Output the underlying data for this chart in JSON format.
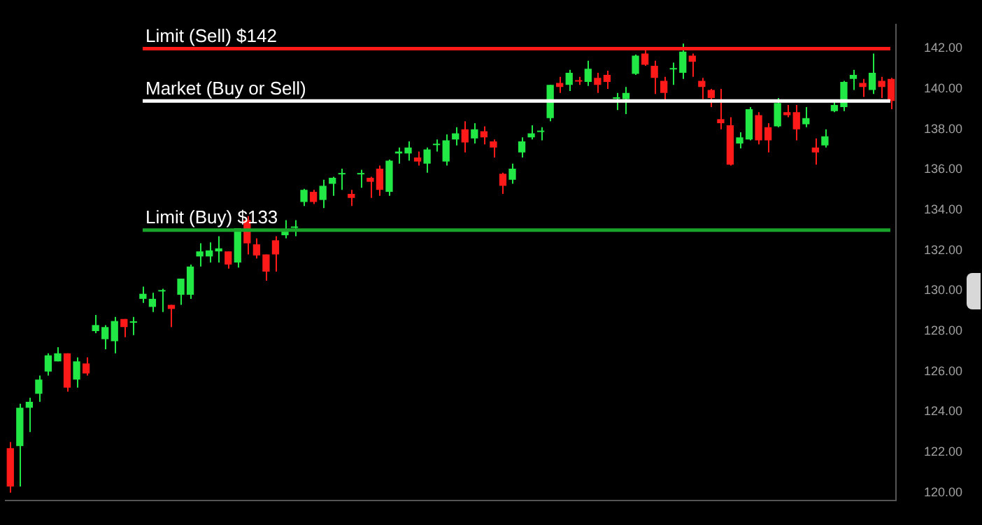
{
  "chart_data": {
    "type": "candlestick",
    "categories": [
      null,
      null,
      null,
      null,
      null,
      null,
      null,
      null,
      null,
      null,
      null,
      null,
      null,
      null,
      null,
      null,
      null,
      null,
      null,
      null,
      null,
      null,
      null,
      null,
      null,
      null,
      null,
      null,
      null,
      null,
      null,
      null,
      null,
      null,
      null,
      null,
      null,
      null,
      null,
      null,
      null,
      null,
      null,
      null,
      null,
      null,
      null,
      null,
      null,
      null,
      null,
      null,
      null,
      null,
      null,
      null,
      null,
      null,
      null,
      null,
      null,
      null,
      null,
      null,
      null,
      null,
      null,
      null,
      null,
      null,
      null,
      null,
      null,
      null,
      null,
      null,
      null,
      null,
      null,
      null,
      null,
      null,
      null,
      null,
      null,
      null,
      null,
      null,
      null,
      null,
      null,
      null,
      null,
      null
    ],
    "ohlc": [
      [
        122.2,
        122.5,
        120.0,
        120.3
      ],
      [
        122.3,
        124.4,
        120.3,
        124.2
      ],
      [
        124.2,
        124.7,
        123.0,
        124.5
      ],
      [
        124.9,
        125.8,
        124.5,
        125.6
      ],
      [
        126.0,
        126.9,
        125.8,
        126.8
      ],
      [
        126.5,
        127.2,
        126.5,
        126.9
      ],
      [
        126.9,
        126.9,
        125.0,
        125.2
      ],
      [
        125.6,
        126.7,
        125.2,
        126.5
      ],
      [
        126.4,
        126.7,
        125.8,
        125.9
      ],
      [
        128.0,
        128.8,
        127.9,
        128.3
      ],
      [
        127.6,
        128.3,
        127.1,
        128.2
      ],
      [
        127.5,
        128.7,
        126.9,
        128.5
      ],
      [
        128.6,
        128.6,
        127.7,
        128.2
      ],
      [
        128.45,
        128.7,
        127.8,
        128.45
      ],
      [
        129.6,
        130.2,
        129.4,
        129.85
      ],
      [
        129.2,
        129.9,
        128.95,
        129.6
      ],
      [
        130.0,
        130.1,
        128.95,
        130.0
      ],
      [
        129.3,
        129.3,
        128.2,
        129.1
      ],
      [
        129.8,
        130.6,
        129.3,
        130.6
      ],
      [
        129.8,
        131.3,
        129.6,
        131.2
      ],
      [
        131.7,
        132.35,
        131.2,
        131.95
      ],
      [
        131.7,
        132.4,
        131.4,
        132.0
      ],
      [
        131.95,
        132.7,
        131.4,
        132.1
      ],
      [
        131.95,
        131.95,
        131.1,
        131.3
      ],
      [
        131.4,
        133.1,
        131.15,
        133.1
      ],
      [
        133.5,
        133.7,
        131.8,
        132.35
      ],
      [
        132.3,
        132.6,
        131.6,
        131.75
      ],
      [
        131.8,
        131.8,
        130.5,
        130.95
      ],
      [
        132.5,
        132.7,
        130.95,
        131.8
      ],
      [
        132.75,
        133.5,
        132.6,
        132.95
      ],
      [
        133.15,
        133.5,
        132.7,
        133.15
      ],
      [
        134.4,
        135.05,
        134.2,
        135.0
      ],
      [
        134.9,
        135.0,
        134.3,
        134.4
      ],
      [
        134.5,
        135.5,
        134.1,
        135.2
      ],
      [
        135.3,
        135.65,
        134.7,
        135.6
      ],
      [
        135.8,
        136.05,
        135.0,
        135.8
      ],
      [
        134.8,
        135.0,
        134.2,
        134.6
      ],
      [
        135.8,
        136.0,
        135.1,
        135.8
      ],
      [
        135.6,
        135.65,
        134.6,
        135.4
      ],
      [
        136.05,
        136.2,
        134.7,
        135.0
      ],
      [
        134.9,
        136.5,
        134.7,
        136.45
      ],
      [
        136.8,
        137.1,
        136.3,
        136.9
      ],
      [
        136.8,
        137.4,
        136.45,
        137.1
      ],
      [
        136.6,
        136.9,
        136.2,
        136.4
      ],
      [
        136.3,
        137.1,
        135.85,
        137.0
      ],
      [
        137.25,
        137.5,
        136.9,
        137.25
      ],
      [
        136.4,
        137.75,
        136.2,
        137.45
      ],
      [
        137.5,
        138.1,
        137.2,
        137.8
      ],
      [
        138.0,
        138.4,
        136.85,
        137.35
      ],
      [
        137.55,
        138.3,
        137.3,
        138.0
      ],
      [
        137.9,
        138.15,
        137.25,
        137.6
      ],
      [
        137.4,
        137.5,
        136.6,
        137.1
      ],
      [
        135.8,
        135.85,
        134.8,
        135.2
      ],
      [
        135.5,
        136.3,
        135.3,
        136.05
      ],
      [
        136.85,
        137.6,
        136.6,
        137.4
      ],
      [
        137.6,
        138.2,
        137.5,
        137.8
      ],
      [
        137.9,
        138.1,
        137.45,
        137.9
      ],
      [
        138.55,
        140.2,
        138.4,
        140.2
      ],
      [
        140.3,
        140.6,
        139.8,
        140.1
      ],
      [
        140.2,
        140.95,
        139.9,
        140.8
      ],
      [
        140.4,
        140.6,
        140.2,
        140.4
      ],
      [
        140.35,
        141.4,
        140.15,
        141.0
      ],
      [
        140.55,
        140.8,
        139.8,
        140.2
      ],
      [
        140.7,
        140.9,
        140.0,
        140.35
      ],
      [
        139.55,
        139.8,
        138.95,
        139.55
      ],
      [
        139.5,
        140.1,
        138.75,
        139.8
      ],
      [
        140.75,
        141.7,
        140.7,
        141.65
      ],
      [
        141.75,
        141.95,
        141.15,
        141.2
      ],
      [
        141.15,
        141.4,
        139.75,
        140.55
      ],
      [
        140.4,
        140.6,
        139.35,
        139.8
      ],
      [
        141.0,
        141.3,
        140.2,
        141.0
      ],
      [
        140.8,
        142.25,
        140.5,
        141.85
      ],
      [
        141.65,
        141.75,
        140.6,
        141.35
      ],
      [
        140.4,
        140.55,
        139.5,
        140.1
      ],
      [
        139.95,
        140.0,
        139.1,
        139.55
      ],
      [
        138.5,
        140.0,
        138.0,
        138.3
      ],
      [
        138.2,
        138.6,
        136.2,
        136.25
      ],
      [
        137.3,
        137.85,
        137.05,
        137.6
      ],
      [
        137.5,
        139.1,
        137.45,
        139.0
      ],
      [
        138.7,
        138.85,
        137.25,
        137.45
      ],
      [
        138.1,
        138.3,
        136.85,
        137.45
      ],
      [
        138.15,
        139.55,
        138.1,
        139.3
      ],
      [
        138.85,
        139.2,
        138.6,
        138.7
      ],
      [
        138.85,
        139.2,
        137.45,
        138.0
      ],
      [
        138.25,
        139.1,
        138.1,
        138.55
      ],
      [
        137.1,
        137.55,
        136.25,
        136.85
      ],
      [
        137.2,
        138.0,
        137.1,
        137.65
      ],
      [
        138.9,
        139.4,
        138.85,
        139.2
      ],
      [
        139.1,
        140.4,
        138.9,
        140.35
      ],
      [
        140.5,
        140.95,
        139.95,
        140.7
      ],
      [
        140.3,
        140.5,
        139.6,
        140.1
      ],
      [
        139.95,
        141.75,
        139.75,
        140.8
      ],
      [
        140.4,
        140.6,
        139.55,
        140.1
      ],
      [
        140.5,
        140.55,
        139.0,
        139.4
      ]
    ],
    "colors": [
      "#ff1a1a",
      "#22e845",
      "#22e845",
      "#22e845",
      "#22e845",
      "#22e845",
      "#ff1a1a",
      "#22e845",
      "#ff1a1a",
      "#22e845",
      "#22e845",
      "#22e845",
      "#ff1a1a",
      "#22e845",
      "#22e845",
      "#22e845",
      "#22e845",
      "#ff1a1a",
      "#22e845",
      "#22e845",
      "#22e845",
      "#22e845",
      "#22e845",
      "#ff1a1a",
      "#22e845",
      "#ff1a1a",
      "#ff1a1a",
      "#ff1a1a",
      "#ff1a1a",
      "#22e845",
      "#22e845",
      "#22e845",
      "#ff1a1a",
      "#22e845",
      "#22e845",
      "#22e845",
      "#ff1a1a",
      "#22e845",
      "#ff1a1a",
      "#ff1a1a",
      "#22e845",
      "#22e845",
      "#22e845",
      "#ff1a1a",
      "#22e845",
      "#22e845",
      "#22e845",
      "#22e845",
      "#ff1a1a",
      "#22e845",
      "#ff1a1a",
      "#ff1a1a",
      "#ff1a1a",
      "#22e845",
      "#22e845",
      "#22e845",
      "#22e845",
      "#22e845",
      "#ff1a1a",
      "#22e845",
      "#ff1a1a",
      "#22e845",
      "#ff1a1a",
      "#ff1a1a",
      "#22e845",
      "#22e845",
      "#22e845",
      "#ff1a1a",
      "#ff1a1a",
      "#ff1a1a",
      "#22e845",
      "#22e845",
      "#ff1a1a",
      "#ff1a1a",
      "#ff1a1a",
      "#ff1a1a",
      "#ff1a1a",
      "#22e845",
      "#22e845",
      "#ff1a1a",
      "#ff1a1a",
      "#22e845",
      "#ff1a1a",
      "#ff1a1a",
      "#22e845",
      "#ff1a1a",
      "#22e845",
      "#22e845",
      "#22e845",
      "#22e845",
      "#ff1a1a",
      "#22e845",
      "#ff1a1a",
      "#ff1a1a"
    ],
    "ylim": [
      119.6,
      143.2
    ],
    "yticks": [
      {
        "value": 120,
        "label": "120.00"
      },
      {
        "value": 122,
        "label": "122.00"
      },
      {
        "value": 124,
        "label": "124.00"
      },
      {
        "value": 126,
        "label": "126.00"
      },
      {
        "value": 128,
        "label": "128.00"
      },
      {
        "value": 130,
        "label": "130.00"
      },
      {
        "value": 132,
        "label": "132.00"
      },
      {
        "value": 134,
        "label": "134.00"
      },
      {
        "value": 136,
        "label": "136.00"
      },
      {
        "value": 138,
        "label": "138.00"
      },
      {
        "value": 140,
        "label": "140.00"
      },
      {
        "value": 142,
        "label": "142.00"
      }
    ],
    "ref_lines": [
      {
        "axis": "y",
        "value": 142,
        "label": "Limit (Sell) $142",
        "color": "#ff1a1a"
      },
      {
        "axis": "y",
        "value": 139.4,
        "label": "Market (Buy or Sell)",
        "color": "#ffffff"
      },
      {
        "axis": "y",
        "value": 133,
        "label": "Limit (Buy) $133",
        "color": "#1aa32a"
      }
    ],
    "tick_labels": "y"
  }
}
